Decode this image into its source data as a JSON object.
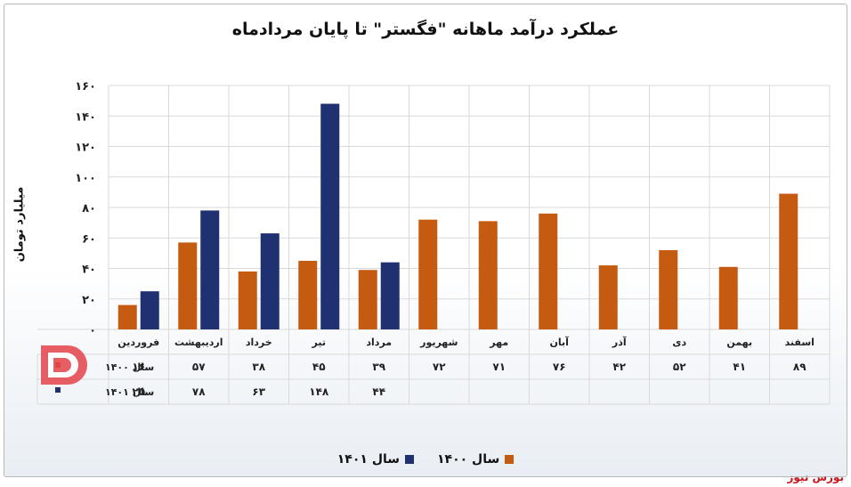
{
  "chart_data": {
    "type": "bar",
    "title": "عملکرد درآمد ماهانه \"فگستر\" تا پایان مردادماه",
    "ylabel": "میلیارد تومان",
    "xlabel": "",
    "ylim": [
      0,
      160
    ],
    "yticks": [
      "۰",
      "۲۰",
      "۴۰",
      "۶۰",
      "۸۰",
      "۱۰۰",
      "۱۲۰",
      "۱۴۰",
      "۱۶۰"
    ],
    "categories": [
      "فروردین",
      "اردیبهشت",
      "خرداد",
      "تیر",
      "مرداد",
      "شهریور",
      "مهر",
      "آبان",
      "آذر",
      "دی",
      "بهمن",
      "اسفند"
    ],
    "series": [
      {
        "name": "سال ۱۴۰۰",
        "color": "#c55a11",
        "values": [
          16,
          57,
          38,
          45,
          39,
          72,
          71,
          76,
          42,
          52,
          41,
          89
        ],
        "labels": [
          "۱۶",
          "۵۷",
          "۳۸",
          "۴۵",
          "۳۹",
          "۷۲",
          "۷۱",
          "۷۶",
          "۴۲",
          "۵۲",
          "۴۱",
          "۸۹"
        ]
      },
      {
        "name": "سال ۱۴۰۱",
        "color": "#1f3171",
        "values": [
          25,
          78,
          63,
          148,
          44,
          null,
          null,
          null,
          null,
          null,
          null,
          null
        ],
        "labels": [
          "۲۵",
          "۷۸",
          "۶۳",
          "۱۴۸",
          "۴۴",
          "",
          "",
          "",
          "",
          "",
          "",
          ""
        ]
      }
    ],
    "grid": true,
    "legend_position": "bottom",
    "data_table": true
  },
  "brand": {
    "text": "بورس نیوز",
    "watermark_text": "بورس نیوز",
    "color": "#c4161c"
  }
}
